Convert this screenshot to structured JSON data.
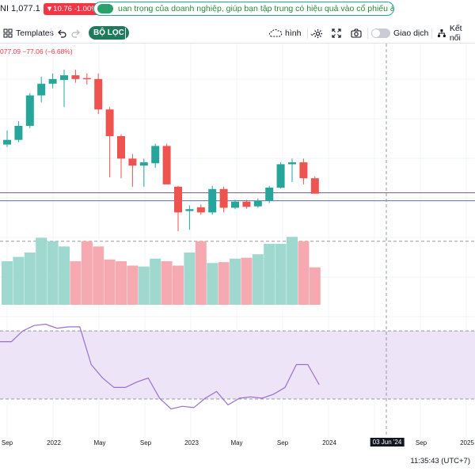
{
  "ticker": {
    "name_price": "NI 1,077.1",
    "change": "▼10.76 -1.00%",
    "marquee": "uan trọng của doanh nghiệp, giúp bạn tập trung có hiệu quả vào cổ phiếu &"
  },
  "toolbar": {
    "templates_label": "Templates",
    "filter_label": "BỘ LỌC",
    "shape_label": "hình",
    "trading_label": "Giao dịch",
    "connect_label": "Kết nối"
  },
  "legend": {
    "text": "077.09 −77.06 (−6.68%)"
  },
  "date_axis": {
    "labels": [
      "Sep",
      "2022",
      "May",
      "Sep",
      "2023",
      "May",
      "Sep",
      "2024",
      "03 Jun '24",
      "Sep",
      "2025"
    ]
  },
  "clock": "11:35:43 (UTC+7)",
  "colors": {
    "up": "#26a69a",
    "down": "#ef5350",
    "vol_up": "#9fd8cf",
    "vol_down": "#f7a9b1",
    "rsi_line": "#9b6fd1",
    "rsi_band": "#ede4f7"
  },
  "chart_data": {
    "type": "candlestick",
    "candles": [
      {
        "o": 1130,
        "h": 1160,
        "l": 1125,
        "c": 1140
      },
      {
        "o": 1140,
        "h": 1180,
        "l": 1135,
        "c": 1170
      },
      {
        "o": 1170,
        "h": 1240,
        "l": 1165,
        "c": 1235
      },
      {
        "o": 1235,
        "h": 1275,
        "l": 1220,
        "c": 1260
      },
      {
        "o": 1260,
        "h": 1282,
        "l": 1250,
        "c": 1270
      },
      {
        "o": 1268,
        "h": 1290,
        "l": 1210,
        "c": 1278
      },
      {
        "o": 1278,
        "h": 1290,
        "l": 1262,
        "c": 1270
      },
      {
        "o": 1272,
        "h": 1282,
        "l": 1258,
        "c": 1270
      },
      {
        "o": 1270,
        "h": 1282,
        "l": 1195,
        "c": 1205
      },
      {
        "o": 1205,
        "h": 1210,
        "l": 1060,
        "c": 1148
      },
      {
        "o": 1148,
        "h": 1152,
        "l": 1058,
        "c": 1100
      },
      {
        "o": 1100,
        "h": 1110,
        "l": 1040,
        "c": 1085
      },
      {
        "o": 1085,
        "h": 1100,
        "l": 1040,
        "c": 1092
      },
      {
        "o": 1090,
        "h": 1132,
        "l": 1080,
        "c": 1127
      },
      {
        "o": 1127,
        "h": 1132,
        "l": 1045,
        "c": 1045
      },
      {
        "o": 1040,
        "h": 1042,
        "l": 945,
        "c": 985
      },
      {
        "o": 988,
        "h": 1000,
        "l": 948,
        "c": 992
      },
      {
        "o": 996,
        "h": 1002,
        "l": 980,
        "c": 985
      },
      {
        "o": 985,
        "h": 1042,
        "l": 980,
        "c": 1035
      },
      {
        "o": 1035,
        "h": 1040,
        "l": 985,
        "c": 995
      },
      {
        "o": 995,
        "h": 1012,
        "l": 992,
        "c": 1008
      },
      {
        "o": 1008,
        "h": 1012,
        "l": 993,
        "c": 997
      },
      {
        "o": 998,
        "h": 1015,
        "l": 995,
        "c": 1010
      },
      {
        "o": 1010,
        "h": 1042,
        "l": 1005,
        "c": 1038
      },
      {
        "o": 1038,
        "h": 1092,
        "l": 1036,
        "c": 1088
      },
      {
        "o": 1088,
        "h": 1100,
        "l": 1050,
        "c": 1092
      },
      {
        "o": 1092,
        "h": 1100,
        "l": 1045,
        "c": 1058
      },
      {
        "o": 1058,
        "h": 1062,
        "l": 1025,
        "c": 1025
      }
    ],
    "price_lines": [
      1027,
      1010
    ],
    "volume": {
      "values": [
        50,
        55,
        60,
        77,
        73,
        67,
        50,
        73,
        67,
        52,
        50,
        45,
        44,
        53,
        50,
        45,
        60,
        73,
        48,
        49,
        53,
        54,
        58,
        70,
        70,
        78,
        73,
        43
      ],
      "dashed_level": 73
    },
    "rsi": {
      "values": [
        62,
        62,
        70,
        74,
        75,
        72,
        73,
        73,
        45,
        35,
        28,
        28,
        32,
        35,
        20,
        12,
        14,
        13,
        20,
        25,
        15,
        20,
        21,
        20,
        23,
        28,
        45,
        45,
        30
      ],
      "dashed_upper": 70,
      "dashed_lower": 30
    }
  }
}
